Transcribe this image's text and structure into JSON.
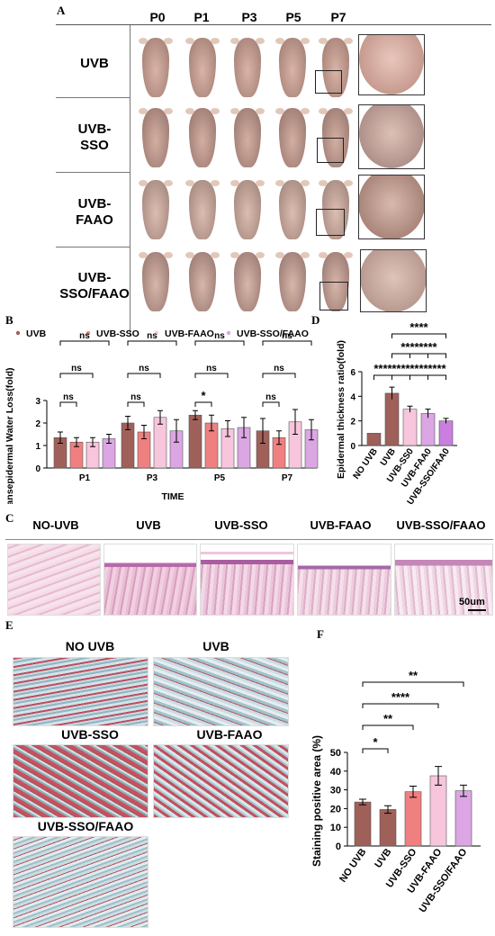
{
  "panel_a": {
    "letter": "A",
    "columns": [
      "P0",
      "P1",
      "P3",
      "P5",
      "P7"
    ],
    "rows": [
      {
        "line1": "UVB",
        "line2": ""
      },
      {
        "line1": "UVB-",
        "line2": "SSO"
      },
      {
        "line1": "UVB-",
        "line2": "FAAO"
      },
      {
        "line1": "UVB-",
        "line2": "SSO/FAAO"
      }
    ]
  },
  "panel_c": {
    "letter": "C",
    "groups": [
      "NO-UVB",
      "UVB",
      "UVB-SSO",
      "UVB-FAAO",
      "UVB-SSO/FAAO"
    ],
    "scale_bar": "50um"
  },
  "panel_e": {
    "letter": "E",
    "groups": [
      "NO UVB",
      "UVB",
      "UVB-SSO",
      "UVB-FAAO",
      "UVB-SSO/FAAO"
    ]
  },
  "colors": {
    "UVB": "#a0605a",
    "UVB-SSO": "#f08080",
    "UVB-FAAO": "#f7c6dc",
    "UVB-SSO/FAAO": "#dba6e3",
    "NO UVB": "#a0605a",
    "UVB-SS0": "#f7c6dc",
    "UVB-FAA0": "#dba6e3",
    "UVB-SSO/FAA0": "#c97fe0"
  },
  "chart_data": [
    {
      "panel": "B",
      "type": "bar",
      "categories": [
        "P1",
        "P3",
        "P5",
        "P7"
      ],
      "series": [
        {
          "name": "UVB",
          "values": [
            1.35,
            2.0,
            2.35,
            1.65
          ],
          "errors": [
            0.25,
            0.3,
            0.2,
            0.55
          ]
        },
        {
          "name": "UVB-SSO",
          "values": [
            1.15,
            1.6,
            2.0,
            1.35
          ],
          "errors": [
            0.2,
            0.3,
            0.35,
            0.3
          ]
        },
        {
          "name": "UVB-FAAO",
          "values": [
            1.15,
            2.25,
            1.75,
            2.05
          ],
          "errors": [
            0.2,
            0.3,
            0.35,
            0.55
          ]
        },
        {
          "name": "UVB-SSO/FAAO",
          "values": [
            1.3,
            1.65,
            1.8,
            1.7
          ],
          "errors": [
            0.2,
            0.5,
            0.45,
            0.45
          ]
        }
      ],
      "xlabel": "TIME",
      "ylabel": "Transepidermal Water Loss(fold)",
      "ylim": [
        0,
        3
      ],
      "yticks": [
        "0",
        "1",
        "2",
        "3"
      ],
      "significance": [
        [
          "ns",
          "ns",
          "ns"
        ],
        [
          "ns",
          "ns",
          "ns"
        ],
        [
          "*",
          "ns",
          "ns"
        ],
        [
          "ns",
          "ns",
          "ns"
        ]
      ],
      "legend_placement": "top"
    },
    {
      "panel": "D",
      "type": "bar",
      "categories": [
        "NO UVB",
        "UVB",
        "UVB-SS0",
        "UVB-FAA0",
        "UVB-SSO/FAA0"
      ],
      "values": [
        1.0,
        4.25,
        2.95,
        2.6,
        2.0
      ],
      "errors": [
        0.0,
        0.5,
        0.25,
        0.35,
        0.2
      ],
      "ylabel": "Epidermal thickness ratio(fold)",
      "ylim": [
        0,
        6
      ],
      "yticks": [
        "0",
        "2",
        "4",
        "6"
      ],
      "significance": [
        "****",
        "****",
        "****",
        "****",
        "****",
        "****",
        "****"
      ]
    },
    {
      "panel": "F",
      "type": "bar",
      "categories": [
        "NO UVB",
        "UVB",
        "UVB-SSO",
        "UVB-FAAO",
        "UVB-SSO/FAAO"
      ],
      "values": [
        23.5,
        19.5,
        29.0,
        37.5,
        29.5
      ],
      "errors": [
        1.5,
        2.0,
        3.0,
        5.0,
        3.0
      ],
      "ylabel": "Staining positive area (%)",
      "ylim": [
        0,
        50
      ],
      "yticks": [
        "0",
        "10",
        "20",
        "30",
        "40",
        "50"
      ],
      "significance": [
        "*",
        "**",
        "****",
        "**"
      ]
    }
  ]
}
